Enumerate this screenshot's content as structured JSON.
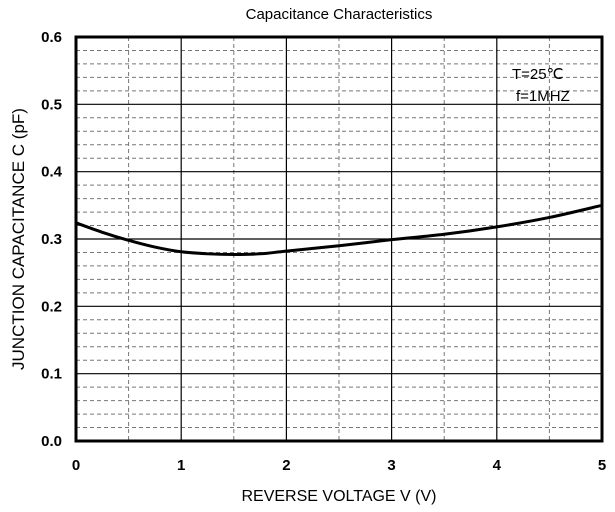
{
  "chart_data": {
    "type": "line",
    "title": "Capacitance Characteristics",
    "xlabel": "REVERSE VOLTAGE V (V)",
    "ylabel": "JUNCTION CAPACITANCE C (pF)",
    "xlim": [
      0,
      5
    ],
    "ylim": [
      0,
      0.6
    ],
    "xticks": [
      "0",
      "1",
      "2",
      "3",
      "4",
      "5"
    ],
    "yticks": [
      "0.0",
      "0.1",
      "0.2",
      "0.3",
      "0.4",
      "0.5",
      "0.6"
    ],
    "grid": true,
    "annotations": [
      "T=25℃",
      "f=1MHZ"
    ],
    "series": [
      {
        "name": "Capacitance",
        "x": [
          0,
          0.25,
          0.5,
          0.75,
          1.0,
          1.25,
          1.5,
          1.75,
          2.0,
          2.5,
          3.0,
          3.5,
          4.0,
          4.5,
          5.0
        ],
        "y": [
          0.324,
          0.31,
          0.298,
          0.288,
          0.281,
          0.278,
          0.277,
          0.278,
          0.282,
          0.29,
          0.299,
          0.307,
          0.318,
          0.332,
          0.35
        ]
      }
    ],
    "line_color": "#000000"
  }
}
